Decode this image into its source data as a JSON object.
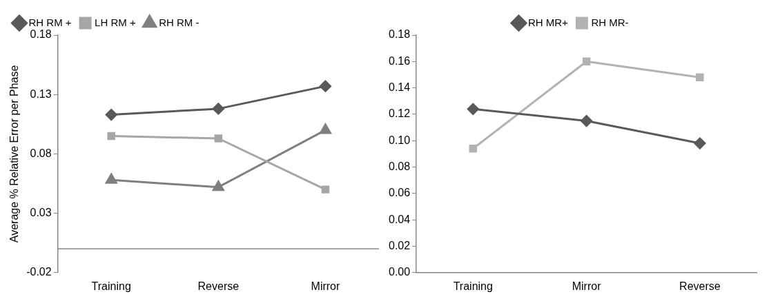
{
  "chart_data": [
    {
      "type": "line",
      "ylabel": "Average % Relative Error per Phase",
      "categories": [
        "Training",
        "Reverse",
        "Mirror"
      ],
      "series": [
        {
          "name": "RH RM +",
          "color": "#595959",
          "marker": "diamond",
          "values": [
            0.113,
            0.118,
            0.137
          ]
        },
        {
          "name": "LH RM +",
          "color": "#a6a6a6",
          "marker": "square",
          "values": [
            0.095,
            0.093,
            0.05
          ]
        },
        {
          "name": "RH RM -",
          "color": "#7f7f7f",
          "marker": "triangle",
          "values": [
            0.058,
            0.052,
            0.1
          ]
        }
      ],
      "ylim": [
        -0.02,
        0.18
      ],
      "yticks": [
        -0.02,
        0.03,
        0.08,
        0.13,
        0.18
      ],
      "ref_lines": [
        {
          "axis": "y",
          "value": 0,
          "color": "#868686"
        }
      ],
      "grid": false,
      "legend": "top"
    },
    {
      "type": "line",
      "categories": [
        "Training",
        "Mirror",
        "Reverse"
      ],
      "series": [
        {
          "name": "RH MR+",
          "color": "#595959",
          "marker": "diamond",
          "values": [
            0.124,
            0.115,
            0.098
          ]
        },
        {
          "name": "RH MR-",
          "color": "#b2b2b2",
          "marker": "square",
          "values": [
            0.094,
            0.16,
            0.148
          ]
        }
      ],
      "ylim": [
        0,
        0.18
      ],
      "yticks": [
        {
          "value": 0,
          "label": "0.00"
        },
        {
          "value": 0.02,
          "label": "0.02"
        },
        {
          "value": 0.04,
          "label": "0.04"
        },
        {
          "value": 0.06,
          "label": "0.06"
        },
        {
          "value": 0.08,
          "label": "0.08"
        },
        {
          "value": 0.1,
          "label": "0.10"
        },
        {
          "value": 0.12,
          "label": "0.12"
        },
        {
          "value": 0.14,
          "label": "0.14"
        },
        {
          "value": 0.16,
          "label": "0.16"
        },
        {
          "value": 0.18,
          "label": "0.18"
        }
      ],
      "grid": false,
      "legend": "top"
    }
  ]
}
